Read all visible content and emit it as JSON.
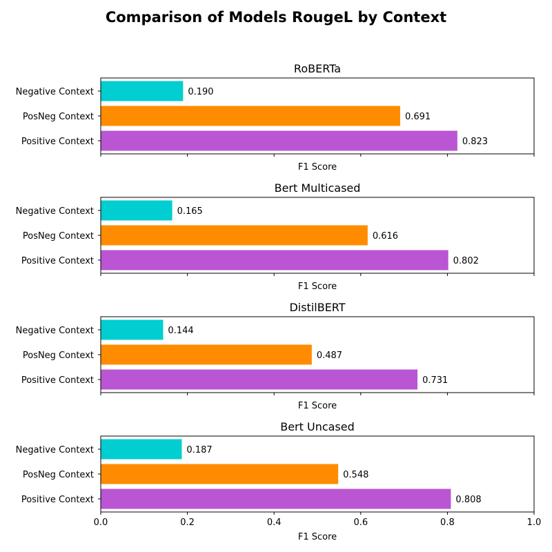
{
  "chart_data": {
    "type": "bar",
    "orientation": "horizontal",
    "title": "Comparison of Models RougeL by Context",
    "categories": [
      "Negative Context",
      "PosNeg Context",
      "Positive Context"
    ],
    "bar_colors": [
      "#00CED1",
      "#FF8C00",
      "#BA55D3"
    ],
    "xlabel": "F1 Score",
    "xlim": [
      0,
      1
    ],
    "xticks": [
      "0.0",
      "0.2",
      "0.4",
      "0.6",
      "0.8",
      "1.0"
    ],
    "panels": [
      {
        "title": "RoBERTa",
        "values": [
          0.19,
          0.691,
          0.823
        ],
        "labels": [
          "0.190",
          "0.691",
          "0.823"
        ]
      },
      {
        "title": "Bert Multicased",
        "values": [
          0.165,
          0.616,
          0.802
        ],
        "labels": [
          "0.165",
          "0.616",
          "0.802"
        ]
      },
      {
        "title": "DistilBERT",
        "values": [
          0.144,
          0.487,
          0.731
        ],
        "labels": [
          "0.144",
          "0.487",
          "0.731"
        ]
      },
      {
        "title": "Bert Uncased",
        "values": [
          0.187,
          0.548,
          0.808
        ],
        "labels": [
          "0.187",
          "0.548",
          "0.808"
        ]
      }
    ],
    "grid": false,
    "legend": "none",
    "shared_x_ticklabels_on_bottom_only": true
  }
}
